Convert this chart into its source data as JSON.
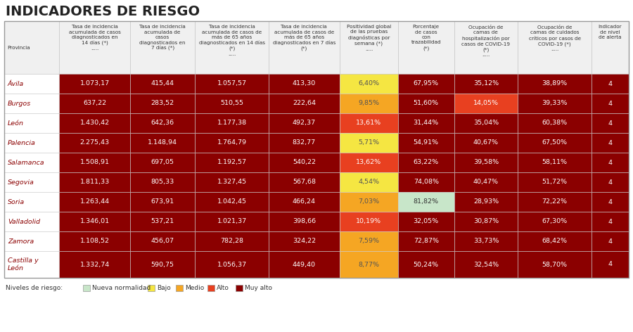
{
  "title": "INDICADORES DE RIESGO",
  "col_headers": [
    "Provincia",
    "Tasa de incidencia\nacumulada de casos\ndiagnosticados en\n14 días (*)\n.....",
    "Tasa de incidencia\nacumulada de\ncasos\ndiagnosticados en\n7 días (*)",
    "Tasa de incidencia\nacumulada de casos de\nmás de 65 años\ndiagnosticados en 14 días\n(*)\n.....",
    "Tasa de incidencia\nacumulada de casos de\nmás de 65 años\ndiagnosticados en 7 días\n(*)",
    "Positividad global\nde las pruebas\ndiagnósticas por\nsemana (*)\n.....",
    "Porcentaje\nde casos\ncon\ntrazabilidad\n(*)",
    "Ocupación de\ncamas de\nhospitalización por\ncasos de COVID-19\n(*)\n.....",
    "Ocupación de\ncamas de cuidados\ncríticos por casos de\nCOVID-19 (*)\n.....",
    "Indicador\nde nivel\nde alerta"
  ],
  "rows": [
    {
      "provincia": "Ávila",
      "vals": [
        "1.073,17",
        "415,44",
        "1.057,57",
        "413,30",
        "6,40%",
        "67,95%",
        "35,12%",
        "38,89%",
        "4"
      ],
      "colors": [
        "#8b0000",
        "#8b0000",
        "#8b0000",
        "#8b0000",
        "#f5e642",
        "#8b0000",
        "#8b0000",
        "#8b0000",
        "#8b0000"
      ]
    },
    {
      "provincia": "Burgos",
      "vals": [
        "637,22",
        "283,52",
        "510,55",
        "222,64",
        "9,85%",
        "51,60%",
        "14,05%",
        "39,33%",
        "4"
      ],
      "colors": [
        "#8b0000",
        "#8b0000",
        "#8b0000",
        "#8b0000",
        "#f5a623",
        "#8b0000",
        "#e84020",
        "#8b0000",
        "#8b0000"
      ]
    },
    {
      "provincia": "León",
      "vals": [
        "1.430,42",
        "642,36",
        "1.177,38",
        "492,37",
        "13,61%",
        "31,44%",
        "35,04%",
        "60,38%",
        "4"
      ],
      "colors": [
        "#8b0000",
        "#8b0000",
        "#8b0000",
        "#8b0000",
        "#e84020",
        "#8b0000",
        "#8b0000",
        "#8b0000",
        "#8b0000"
      ]
    },
    {
      "provincia": "Palencia",
      "vals": [
        "2.275,43",
        "1.148,94",
        "1.764,79",
        "832,77",
        "5,71%",
        "54,91%",
        "40,67%",
        "67,50%",
        "4"
      ],
      "colors": [
        "#8b0000",
        "#8b0000",
        "#8b0000",
        "#8b0000",
        "#f5e642",
        "#8b0000",
        "#8b0000",
        "#8b0000",
        "#8b0000"
      ]
    },
    {
      "provincia": "Salamanca",
      "vals": [
        "1.508,91",
        "697,05",
        "1.192,57",
        "540,22",
        "13,62%",
        "63,22%",
        "39,58%",
        "58,11%",
        "4"
      ],
      "colors": [
        "#8b0000",
        "#8b0000",
        "#8b0000",
        "#8b0000",
        "#e84020",
        "#8b0000",
        "#8b0000",
        "#8b0000",
        "#8b0000"
      ]
    },
    {
      "provincia": "Segovia",
      "vals": [
        "1.811,33",
        "805,33",
        "1.327,45",
        "567,68",
        "4,54%",
        "74,08%",
        "40,47%",
        "51,72%",
        "4"
      ],
      "colors": [
        "#8b0000",
        "#8b0000",
        "#8b0000",
        "#8b0000",
        "#f5e642",
        "#8b0000",
        "#8b0000",
        "#8b0000",
        "#8b0000"
      ]
    },
    {
      "provincia": "Soria",
      "vals": [
        "1.263,44",
        "673,91",
        "1.042,45",
        "466,24",
        "7,03%",
        "81,82%",
        "28,93%",
        "72,22%",
        "4"
      ],
      "colors": [
        "#8b0000",
        "#8b0000",
        "#8b0000",
        "#8b0000",
        "#f5a623",
        "#c8e6c9",
        "#8b0000",
        "#8b0000",
        "#8b0000"
      ]
    },
    {
      "provincia": "Valladolid",
      "vals": [
        "1.346,01",
        "537,21",
        "1.021,37",
        "398,66",
        "10,19%",
        "32,05%",
        "30,87%",
        "67,30%",
        "4"
      ],
      "colors": [
        "#8b0000",
        "#8b0000",
        "#8b0000",
        "#8b0000",
        "#e84020",
        "#8b0000",
        "#8b0000",
        "#8b0000",
        "#8b0000"
      ]
    },
    {
      "provincia": "Zamora",
      "vals": [
        "1.108,52",
        "456,07",
        "782,28",
        "324,22",
        "7,59%",
        "72,87%",
        "33,73%",
        "68,42%",
        "4"
      ],
      "colors": [
        "#8b0000",
        "#8b0000",
        "#8b0000",
        "#8b0000",
        "#f5a623",
        "#8b0000",
        "#8b0000",
        "#8b0000",
        "#8b0000"
      ]
    },
    {
      "provincia": "Castilla y\nLeón",
      "vals": [
        "1.332,74",
        "590,75",
        "1.056,37",
        "449,40",
        "8,77%",
        "50,24%",
        "32,54%",
        "58,70%",
        "4"
      ],
      "colors": [
        "#8b0000",
        "#8b0000",
        "#8b0000",
        "#8b0000",
        "#f5a623",
        "#8b0000",
        "#8b0000",
        "#8b0000",
        "#8b0000"
      ]
    }
  ],
  "legend": [
    {
      "label": "Nueva normalidad",
      "color": "#c8e6c9"
    },
    {
      "label": "Bajo",
      "color": "#f5e642"
    },
    {
      "label": "Medio",
      "color": "#f5a623"
    },
    {
      "label": "Alto",
      "color": "#e84020"
    },
    {
      "label": "Muy alto",
      "color": "#8b0000"
    }
  ],
  "col_widths_rel": [
    62,
    80,
    73,
    83,
    80,
    66,
    63,
    72,
    83,
    42
  ],
  "header_bg": "#f0f0f0",
  "provincia_bg": "#ffffff",
  "title_color": "#222222",
  "header_text_color": "#333333",
  "grid_color": "#cccccc",
  "bg_color": "#ffffff"
}
